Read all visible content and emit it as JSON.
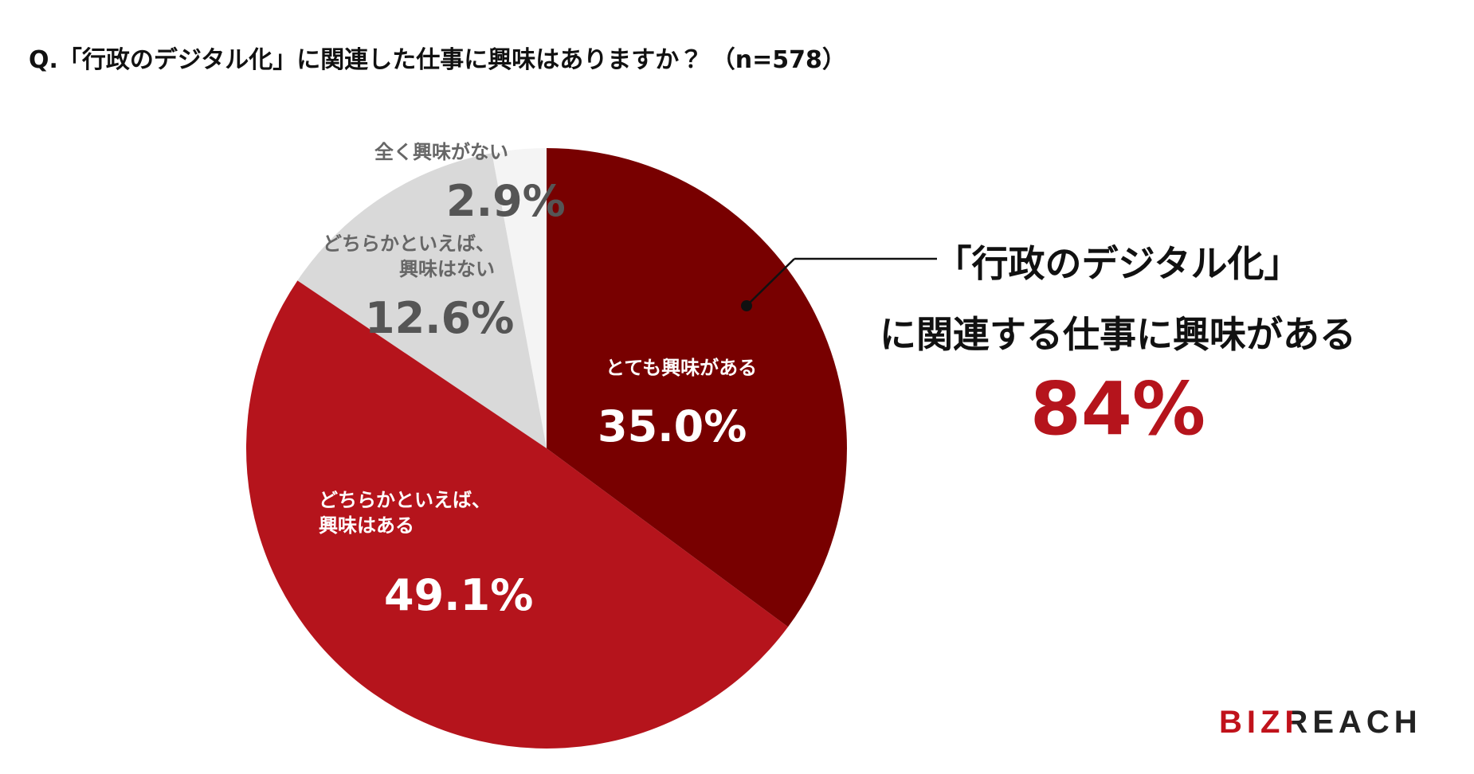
{
  "chart_data": {
    "type": "pie",
    "title": "Q.「行政のデジタル化」に関連した仕事に興味はありますか？ （n=578）",
    "categories": [
      "とても興味がある",
      "どちらかといえば、\n興味はある",
      "どちらかといえば、\n興味はない",
      "全く興味がない"
    ],
    "values": [
      35.0,
      49.1,
      12.6,
      2.9
    ],
    "value_labels": [
      "35.0%",
      "49.1%",
      "12.6%",
      "2.9%"
    ],
    "colors": [
      "#780000",
      "#b5141c",
      "#d9d9d9",
      "#f4f4f4"
    ],
    "callout": {
      "lines": [
        "「行政のデジタル化」",
        "に関連する仕事に興味がある"
      ],
      "value_label": "84%"
    },
    "brand": "BIZREACH"
  }
}
